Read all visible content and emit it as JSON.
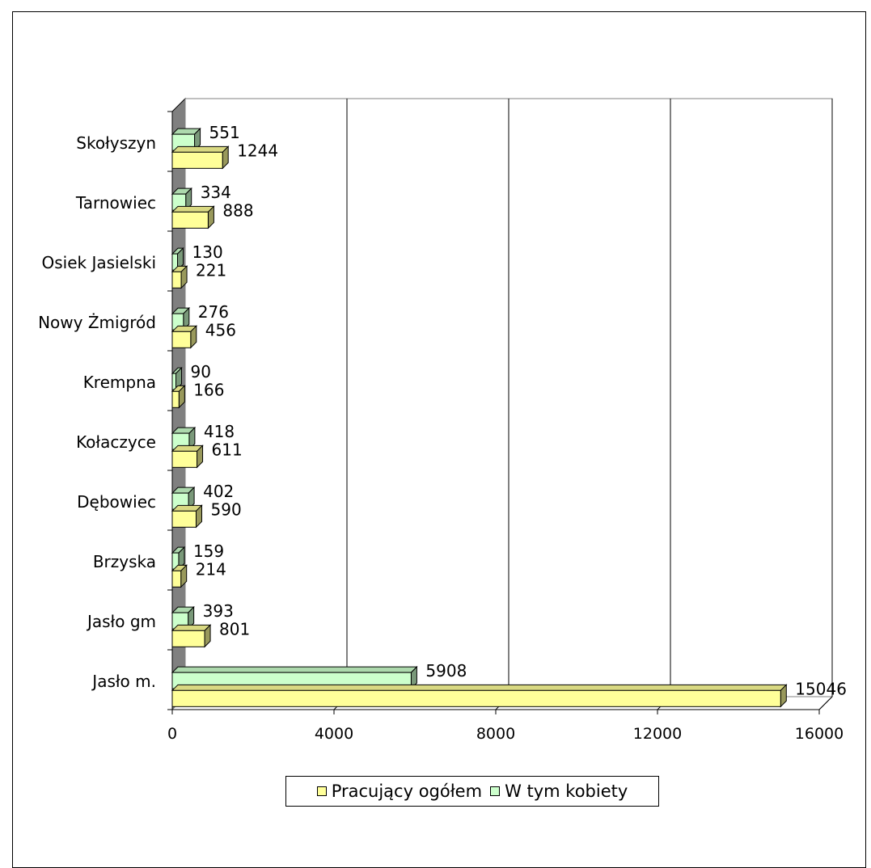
{
  "chart_data": {
    "type": "bar",
    "orientation": "horizontal",
    "categories": [
      "Jasło m.",
      "Jasło gm",
      "Brzyska",
      "Dębowiec",
      "Kołaczyce",
      "Krempna",
      "Nowy Żmigród",
      "Osiek Jasielski",
      "Tarnowiec",
      "Skołyszyn"
    ],
    "series": [
      {
        "name": "Pracujący ogółem",
        "color": "#ffff99",
        "values": [
          15046,
          801,
          214,
          590,
          611,
          166,
          456,
          221,
          888,
          1244
        ]
      },
      {
        "name": "W tym kobiety",
        "color": "#ccffcc",
        "values": [
          5908,
          393,
          159,
          402,
          418,
          90,
          276,
          130,
          334,
          551
        ]
      }
    ],
    "xlim": [
      0,
      16000
    ],
    "xticks": [
      "0",
      "4000",
      "8000",
      "12000",
      "16000"
    ],
    "grid": true,
    "three_d": true,
    "legend_position": "bottom",
    "title": "",
    "xlabel": "",
    "ylabel": ""
  }
}
